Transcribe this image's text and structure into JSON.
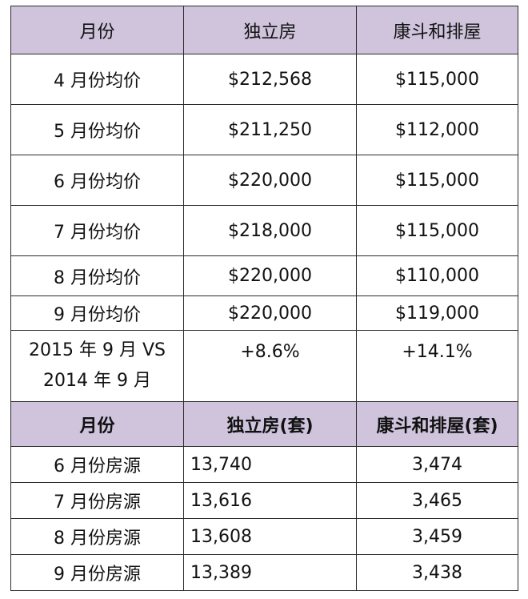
{
  "price_table": {
    "header": [
      "月份",
      "独立房",
      "康斗和排屋"
    ],
    "rows": [
      [
        "4 月份均价",
        "$212,568",
        "$115,000"
      ],
      [
        "5 月份均价",
        "$211,250",
        "$112,000"
      ],
      [
        "6 月份均价",
        "$220,000",
        "$115,000"
      ],
      [
        "7 月份均价",
        "$218,000",
        "$115,000"
      ],
      [
        "8 月份均价",
        "$220,000",
        "$110,000"
      ],
      [
        "9 月份均价",
        "$220,000",
        "$119,000"
      ]
    ],
    "comparison": {
      "label_line1": "2015 年 9 月 VS",
      "label_line2": "2014 年 9 月",
      "detached": "+8.6%",
      "condo": "+14.1%"
    }
  },
  "inventory_table": {
    "header": [
      "月份",
      "独立房(套)",
      "康斗和排屋(套)"
    ],
    "rows": [
      [
        "6 月份房源",
        "13,740",
        "3,474"
      ],
      [
        "7 月份房源",
        "13,616",
        "3,465"
      ],
      [
        "8 月份房源",
        "13,608",
        "3,459"
      ],
      [
        "9 月份房源",
        "13,389",
        "3,438"
      ]
    ]
  },
  "colors": {
    "header_bg": "#cfc4dc",
    "border": "#2b2b2b"
  }
}
